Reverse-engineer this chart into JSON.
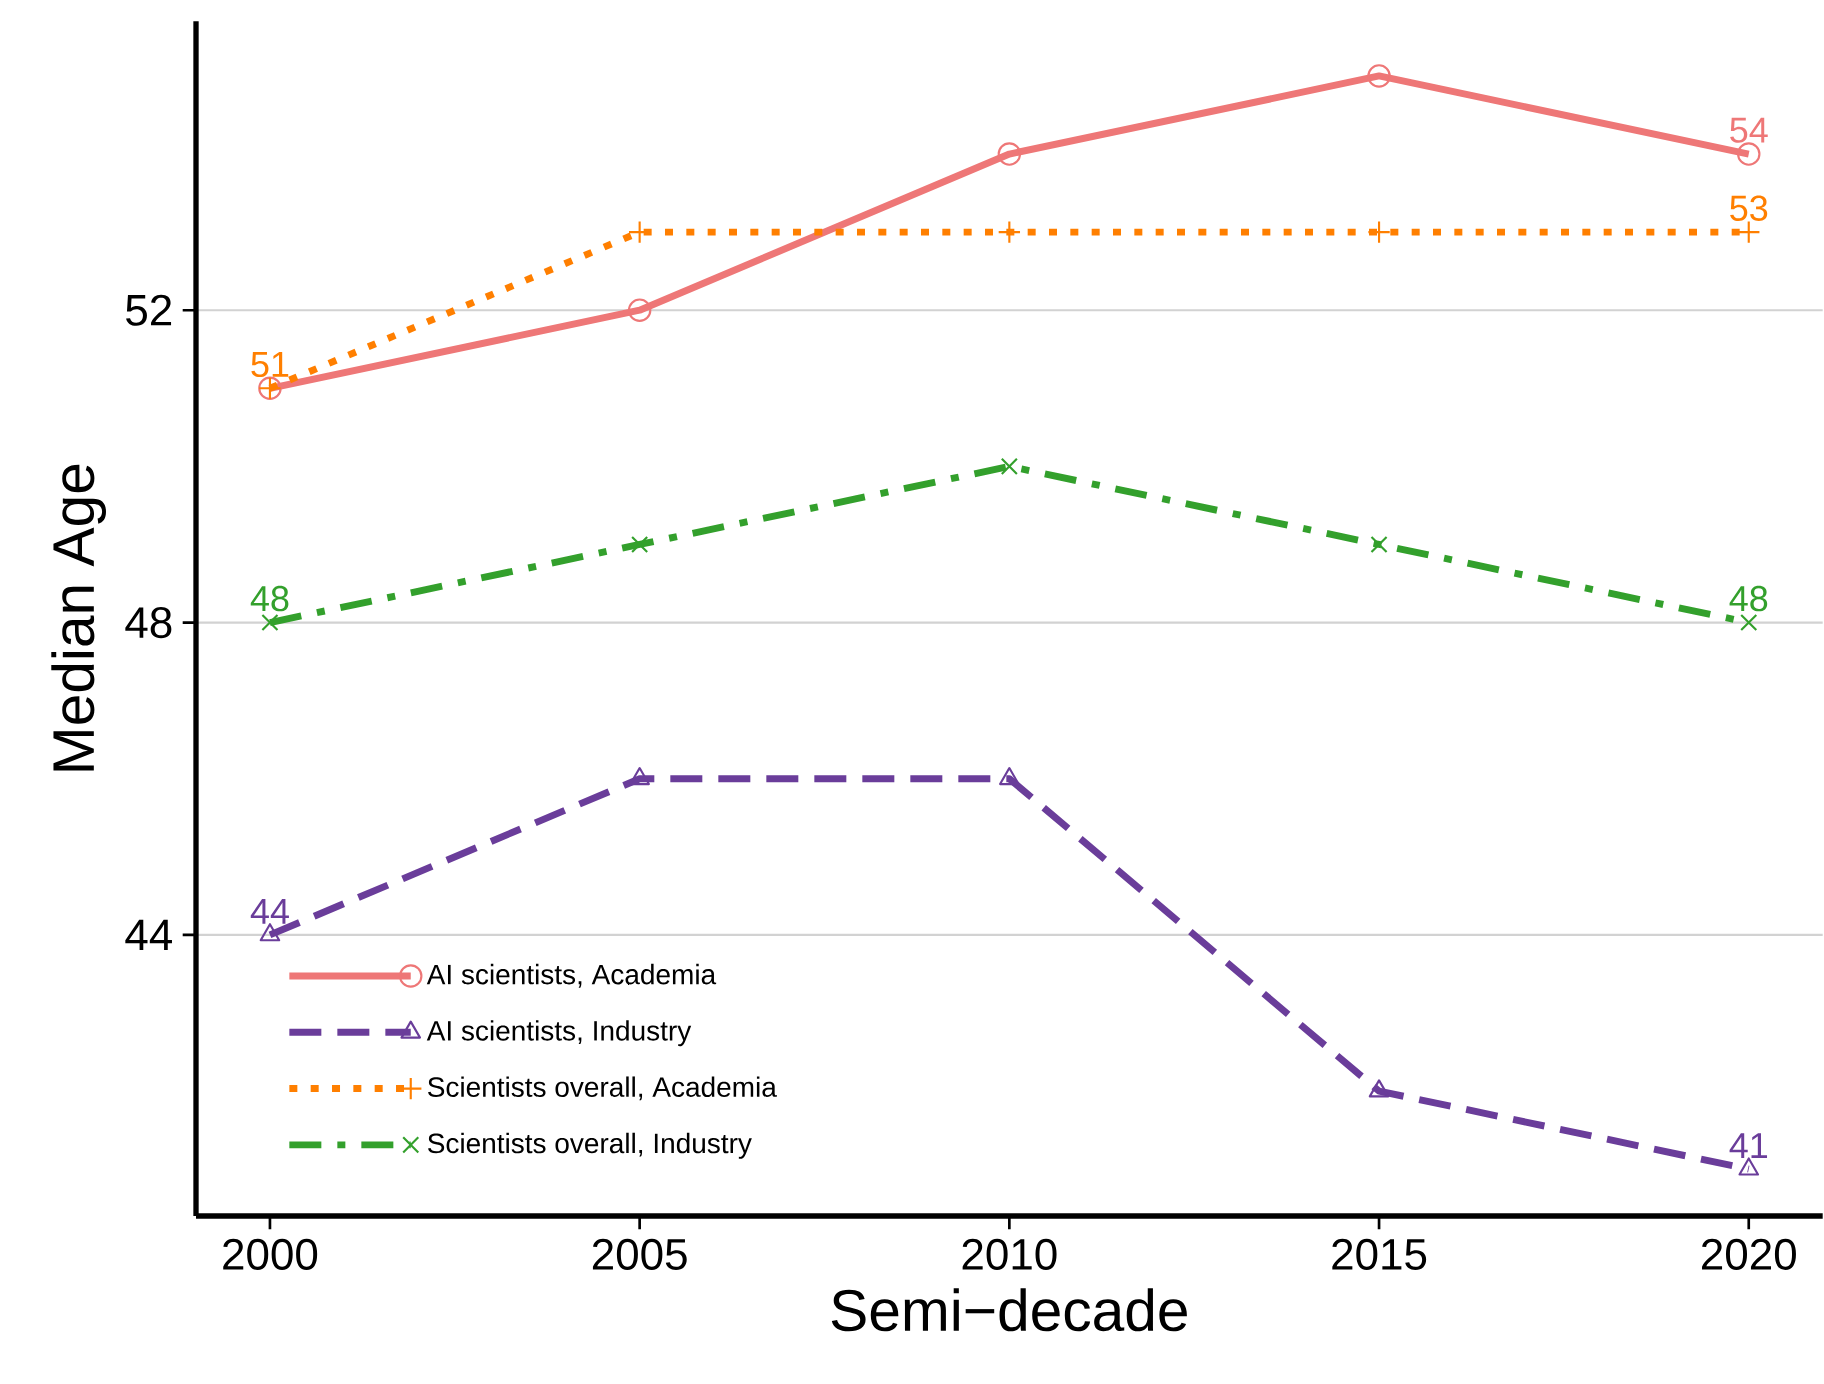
{
  "chart_data": {
    "type": "line",
    "xlabel": "Semi−decade",
    "ylabel": "Median Age",
    "x": [
      2000,
      2005,
      2010,
      2015,
      2020
    ],
    "series": [
      {
        "name": "AI scientists, Academia",
        "color": "#ee7777",
        "values": [
          51,
          52,
          54,
          55,
          54
        ],
        "marker": "circle",
        "line_style": "solid",
        "value_labels": [
          null,
          null,
          null,
          null,
          "54"
        ]
      },
      {
        "name": "AI scientists, Industry",
        "color": "#6a3d9a",
        "values": [
          44,
          46,
          46,
          42,
          41
        ],
        "marker": "triangle",
        "line_style": "dashed",
        "value_labels": [
          "44",
          null,
          null,
          null,
          "41"
        ]
      },
      {
        "name": "Scientists overall, Academia",
        "color": "#ff7f00",
        "values": [
          51,
          53,
          53,
          53,
          53
        ],
        "marker": "plus",
        "line_style": "dotted",
        "value_labels": [
          "51",
          null,
          null,
          null,
          "53"
        ]
      },
      {
        "name": "Scientists overall, Industry",
        "color": "#33a02c",
        "values": [
          48,
          49,
          50,
          49,
          48
        ],
        "marker": "cross",
        "line_style": "dashdot",
        "value_labels": [
          "48",
          null,
          null,
          null,
          "48"
        ]
      }
    ],
    "xlim": [
      1999,
      2021
    ],
    "ylim": [
      40.4,
      55.7
    ],
    "xticks": [
      2000,
      2005,
      2010,
      2015,
      2020
    ],
    "yticks": [
      44,
      48,
      52
    ],
    "grid": "y",
    "legend": "bottom left"
  }
}
